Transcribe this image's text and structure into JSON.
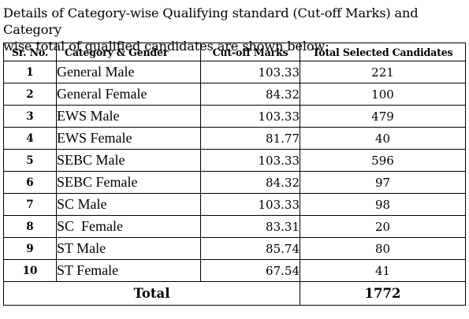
{
  "intro": {
    "line1": "Details of Category-wise Qualifying standard (Cut-off Marks) and Category",
    "line2": "wise total of qualified candidates are shown below:"
  },
  "table": {
    "headers": {
      "sr": "Sr. No.",
      "category": "Category & Gender",
      "cutoff": "Cut-off Marks",
      "total": "Total Selected Candidates"
    },
    "rows": [
      {
        "sr": "1",
        "category": "General Male",
        "cutoff": "103.33",
        "total": "221"
      },
      {
        "sr": "2",
        "category": "General Female",
        "cutoff": "84.32",
        "total": "100"
      },
      {
        "sr": "3",
        "category": "EWS Male",
        "cutoff": "103.33",
        "total": "479"
      },
      {
        "sr": "4",
        "category": "EWS Female",
        "cutoff": "81.77",
        "total": "40"
      },
      {
        "sr": "5",
        "category": "SEBC Male",
        "cutoff": "103.33",
        "total": "596"
      },
      {
        "sr": "6",
        "category": "SEBC Female",
        "cutoff": "84.32",
        "total": "97"
      },
      {
        "sr": "7",
        "category": "SC Male",
        "cutoff": "103.33",
        "total": "98"
      },
      {
        "sr": "8",
        "category": "SC  Female",
        "cutoff": "83.31",
        "total": "20"
      },
      {
        "sr": "9",
        "category": "ST Male",
        "cutoff": "85.74",
        "total": "80"
      },
      {
        "sr": "10",
        "category": "ST Female",
        "cutoff": "67.54",
        "total": "41"
      }
    ],
    "total_label": "Total",
    "total_value": "1772"
  }
}
